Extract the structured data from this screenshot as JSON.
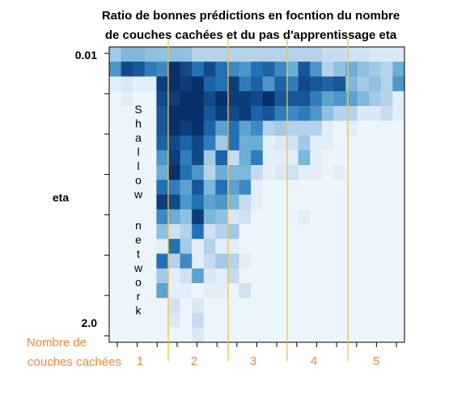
{
  "chart_data": {
    "type": "heatmap",
    "title": [
      "Ratio de bonnes prédictions en focntion du nombre",
      "de couches cachées et du pas d'apprentissage eta"
    ],
    "ylabel": "eta",
    "yticks": [
      "0.01",
      "2.0"
    ],
    "xlabel": [
      "Nombre de",
      "couches cachées"
    ],
    "xgroups": [
      "1",
      "2",
      "3",
      "4",
      "5"
    ],
    "annotation": "Shallow network",
    "colors": {
      "low": "#f7fbff",
      "high": "#08306b",
      "axis": "#000000",
      "group_line": "#f5c242",
      "label_accent": "#f0883a"
    },
    "values": [
      [
        0.35,
        0.45,
        0.45,
        0.4,
        0.4,
        0.4,
        0.4,
        0.3,
        0.3,
        0.3,
        0.3,
        0.3,
        0.3,
        0.3,
        0.3,
        0.3,
        0.3,
        0.3,
        0.25,
        0.25,
        0.2,
        0.2,
        0.15,
        0.15,
        0.15
      ],
      [
        0.6,
        0.9,
        0.85,
        0.7,
        0.65,
        1.0,
        0.9,
        0.75,
        0.9,
        0.75,
        0.65,
        0.6,
        0.75,
        0.8,
        0.65,
        0.5,
        0.85,
        0.6,
        0.3,
        0.4,
        0.5,
        0.4,
        0.35,
        0.3,
        0.5
      ],
      [
        0.1,
        0.15,
        0.1,
        0.1,
        0.95,
        1.0,
        0.95,
        1.0,
        0.8,
        0.75,
        0.95,
        0.7,
        0.8,
        0.6,
        0.8,
        0.7,
        0.9,
        0.85,
        0.8,
        0.85,
        0.45,
        0.35,
        0.4,
        0.3,
        0.6
      ],
      [
        0.05,
        0.1,
        0.05,
        0.05,
        0.9,
        0.95,
        1.0,
        1.0,
        0.9,
        1.0,
        0.95,
        0.95,
        0.9,
        1.0,
        0.85,
        0.85,
        0.85,
        0.7,
        0.55,
        0.6,
        0.55,
        0.45,
        0.35,
        0.3,
        0.1
      ],
      [
        0.05,
        0.05,
        0.05,
        0.05,
        0.85,
        1.0,
        1.0,
        1.0,
        0.85,
        0.95,
        0.9,
        0.95,
        0.8,
        0.85,
        0.7,
        0.65,
        0.7,
        0.6,
        0.4,
        0.3,
        0.3,
        0.15,
        0.15,
        0.25,
        0.1
      ],
      [
        0.05,
        0.05,
        0.05,
        0.05,
        0.85,
        1.0,
        0.95,
        1.0,
        0.8,
        0.55,
        0.75,
        0.55,
        0.65,
        0.3,
        0.35,
        0.3,
        0.3,
        0.3,
        0.1,
        0.05,
        0.1,
        0.05,
        0.05,
        0.05,
        0.05
      ],
      [
        0.05,
        0.05,
        0.05,
        0.05,
        0.8,
        0.9,
        0.8,
        0.9,
        0.7,
        0.35,
        0.75,
        0.5,
        0.5,
        0.1,
        0.15,
        0.2,
        0.35,
        0.1,
        0.1,
        0.05,
        0.05,
        0.05,
        0.05,
        0.05,
        0.05
      ],
      [
        0.05,
        0.05,
        0.05,
        0.05,
        0.6,
        0.95,
        0.7,
        0.9,
        0.35,
        0.8,
        0.25,
        0.5,
        0.7,
        0.1,
        0.1,
        0.1,
        0.45,
        0.1,
        0.05,
        0.05,
        0.05,
        0.05,
        0.05,
        0.05,
        0.05
      ],
      [
        0.05,
        0.05,
        0.05,
        0.05,
        0.5,
        1.0,
        0.75,
        0.6,
        0.3,
        0.5,
        0.45,
        0.45,
        0.25,
        0.1,
        0.15,
        0.2,
        0.1,
        0.1,
        0.05,
        0.1,
        0.05,
        0.05,
        0.05,
        0.05,
        0.05
      ],
      [
        0.05,
        0.05,
        0.05,
        0.05,
        0.75,
        0.7,
        0.55,
        0.85,
        0.45,
        0.75,
        0.55,
        0.65,
        0.1,
        0.05,
        0.05,
        0.05,
        0.05,
        0.05,
        0.05,
        0.05,
        0.05,
        0.05,
        0.05,
        0.05,
        0.05
      ],
      [
        0.05,
        0.05,
        0.05,
        0.05,
        0.95,
        0.9,
        0.6,
        0.75,
        0.55,
        0.6,
        0.45,
        0.25,
        0.1,
        0.05,
        0.05,
        0.05,
        0.05,
        0.05,
        0.05,
        0.05,
        0.05,
        0.05,
        0.05,
        0.05,
        0.05
      ],
      [
        0.05,
        0.05,
        0.05,
        0.05,
        0.65,
        0.5,
        0.4,
        0.95,
        0.45,
        0.4,
        0.15,
        0.2,
        0.05,
        0.05,
        0.05,
        0.05,
        0.1,
        0.05,
        0.05,
        0.05,
        0.05,
        0.05,
        0.05,
        0.05,
        0.05
      ],
      [
        0.05,
        0.05,
        0.05,
        0.05,
        0.4,
        0.2,
        0.3,
        0.75,
        0.2,
        0.3,
        0.35,
        0.05,
        0.05,
        0.05,
        0.05,
        0.05,
        0.05,
        0.05,
        0.05,
        0.05,
        0.05,
        0.05,
        0.05,
        0.05,
        0.05
      ],
      [
        0.05,
        0.05,
        0.05,
        0.05,
        0.1,
        0.75,
        0.35,
        0.1,
        0.3,
        0.1,
        0.1,
        0.05,
        0.05,
        0.05,
        0.05,
        0.05,
        0.05,
        0.05,
        0.05,
        0.05,
        0.05,
        0.05,
        0.05,
        0.05,
        0.05
      ],
      [
        0.05,
        0.05,
        0.05,
        0.05,
        0.75,
        0.3,
        0.65,
        0.1,
        0.25,
        0.35,
        0.3,
        0.1,
        0.05,
        0.05,
        0.05,
        0.05,
        0.05,
        0.05,
        0.05,
        0.05,
        0.05,
        0.05,
        0.05,
        0.05,
        0.05
      ],
      [
        0.05,
        0.05,
        0.05,
        0.05,
        0.35,
        0.1,
        0.2,
        0.55,
        0.15,
        0.1,
        0.25,
        0.05,
        0.05,
        0.05,
        0.05,
        0.05,
        0.05,
        0.05,
        0.05,
        0.05,
        0.05,
        0.05,
        0.05,
        0.05,
        0.05
      ],
      [
        0.05,
        0.05,
        0.05,
        0.05,
        0.55,
        0.1,
        0.1,
        0.05,
        0.1,
        0.1,
        0.05,
        0.2,
        0.05,
        0.05,
        0.05,
        0.05,
        0.05,
        0.05,
        0.05,
        0.05,
        0.05,
        0.05,
        0.05,
        0.05,
        0.05
      ],
      [
        0.05,
        0.05,
        0.05,
        0.05,
        0.05,
        0.2,
        0.05,
        0.15,
        0.05,
        0.05,
        0.05,
        0.05,
        0.05,
        0.05,
        0.05,
        0.05,
        0.05,
        0.05,
        0.05,
        0.05,
        0.05,
        0.05,
        0.05,
        0.05,
        0.05
      ],
      [
        0.05,
        0.05,
        0.05,
        0.05,
        0.05,
        0.15,
        0.05,
        0.25,
        0.05,
        0.05,
        0.05,
        0.05,
        0.05,
        0.05,
        0.05,
        0.05,
        0.05,
        0.05,
        0.05,
        0.05,
        0.05,
        0.05,
        0.05,
        0.05,
        0.05
      ],
      [
        0.05,
        0.05,
        0.05,
        0.05,
        0.05,
        0.05,
        0.05,
        0.15,
        0.05,
        0.05,
        0.05,
        0.05,
        0.05,
        0.05,
        0.05,
        0.05,
        0.05,
        0.05,
        0.05,
        0.05,
        0.05,
        0.05,
        0.05,
        0.05,
        0.05
      ]
    ]
  }
}
